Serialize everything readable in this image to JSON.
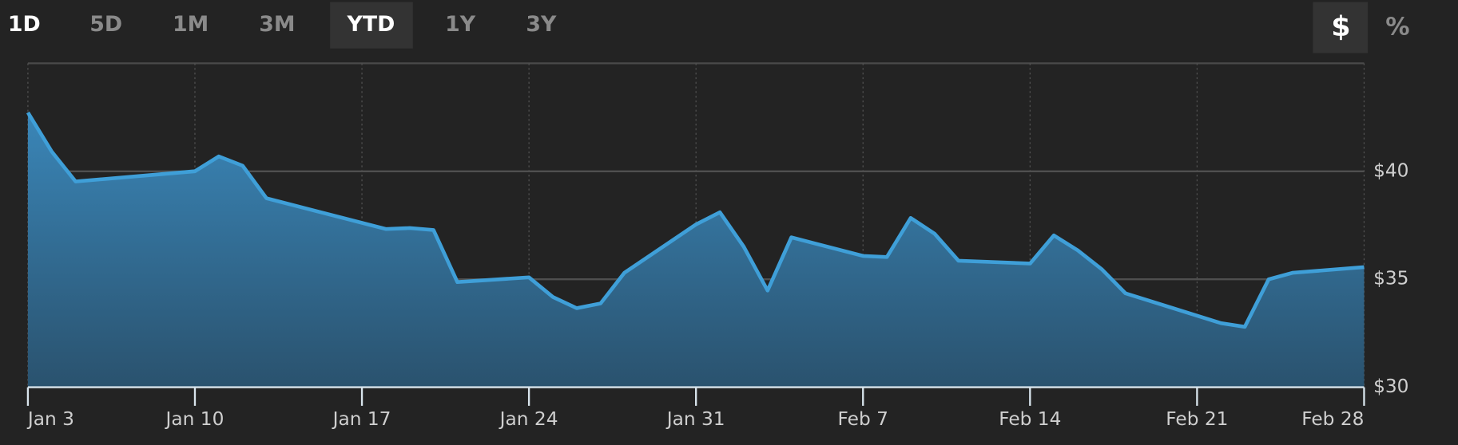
{
  "ui": {
    "ranges": [
      "1D",
      "5D",
      "1M",
      "3M",
      "YTD",
      "1Y",
      "3Y"
    ],
    "selected_range": "YTD",
    "units": [
      "$",
      "%"
    ],
    "selected_unit": "$"
  },
  "chart_data": {
    "type": "area",
    "color": "#3f9fd8",
    "x": [
      "Jan 3",
      "Jan 4",
      "Jan 5",
      "Jan 10",
      "Jan 11",
      "Jan 12",
      "Jan 13",
      "Jan 18",
      "Jan 19",
      "Jan 20",
      "Jan 21",
      "Jan 24",
      "Jan 25",
      "Jan 26",
      "Jan 27",
      "Jan 28",
      "Jan 31",
      "Feb 1",
      "Feb 2",
      "Feb 3",
      "Feb 4",
      "Feb 7",
      "Feb 8",
      "Feb 9",
      "Feb 10",
      "Feb 11",
      "Feb 14",
      "Feb 15",
      "Feb 16",
      "Feb 17",
      "Feb 18",
      "Feb 22",
      "Feb 23",
      "Feb 24",
      "Feb 25",
      "Feb 28"
    ],
    "values": [
      42.72,
      40.91,
      39.53,
      40.0,
      40.69,
      40.26,
      38.75,
      37.33,
      37.37,
      37.28,
      34.87,
      35.09,
      34.18,
      33.66,
      33.88,
      35.3,
      37.54,
      38.1,
      36.51,
      34.48,
      36.94,
      36.08,
      36.03,
      37.84,
      37.11,
      35.86,
      35.73,
      37.03,
      36.34,
      35.47,
      34.35,
      32.97,
      32.8,
      35.0,
      35.3,
      35.56
    ],
    "xlim": [
      "Jan 3",
      "Feb 28"
    ],
    "xticks": [
      "Jan 3",
      "Jan 10",
      "Jan 17",
      "Jan 24",
      "Jan 31",
      "Feb 7",
      "Feb 14",
      "Feb 21",
      "Feb 28"
    ],
    "ylim": [
      30,
      45
    ],
    "yticks": [
      {
        "value": 30,
        "label": "$30"
      },
      {
        "value": 35,
        "label": "$35"
      },
      {
        "value": 40,
        "label": "$40"
      }
    ],
    "grid": true
  }
}
